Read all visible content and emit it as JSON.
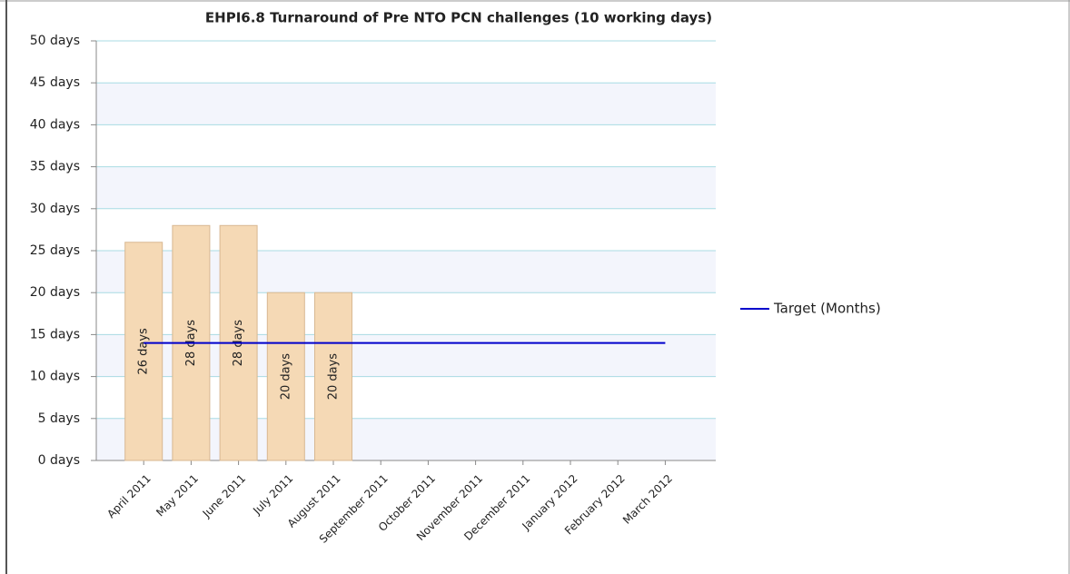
{
  "chart_data": {
    "type": "bar",
    "title": "EHPI6.8 Turnaround of Pre NTO PCN challenges (10 working days)",
    "categories": [
      "April 2011",
      "May 2011",
      "June 2011",
      "July 2011",
      "August 2011",
      "September 2011",
      "October 2011",
      "November 2011",
      "December 2011",
      "January 2012",
      "February 2012",
      "March 2012"
    ],
    "series": [
      {
        "type": "bar",
        "color": "#f5d9b5",
        "values": [
          26,
          28,
          28,
          20,
          20,
          null,
          null,
          null,
          null,
          null,
          null,
          null
        ],
        "value_labels": [
          "26 days",
          "28 days",
          "28 days",
          "20 days",
          "20 days",
          null,
          null,
          null,
          null,
          null,
          null,
          null
        ]
      },
      {
        "type": "line",
        "name": "Target (Months)",
        "color": "#0000cc",
        "values": [
          14,
          14,
          14,
          14,
          14,
          14,
          14,
          14,
          14,
          14,
          14,
          14
        ]
      }
    ],
    "ylim": [
      0,
      50
    ],
    "yticks": [
      {
        "value": 0,
        "label": "0 days"
      },
      {
        "value": 5,
        "label": "5 days"
      },
      {
        "value": 10,
        "label": "10 days"
      },
      {
        "value": 15,
        "label": "15 days"
      },
      {
        "value": 20,
        "label": "20 days"
      },
      {
        "value": 25,
        "label": "25 days"
      },
      {
        "value": 30,
        "label": "30 days"
      },
      {
        "value": 35,
        "label": "35 days"
      },
      {
        "value": 40,
        "label": "40 days"
      },
      {
        "value": 45,
        "label": "45 days"
      },
      {
        "value": 50,
        "label": "50 days"
      }
    ],
    "grid": true,
    "legend": "right"
  }
}
